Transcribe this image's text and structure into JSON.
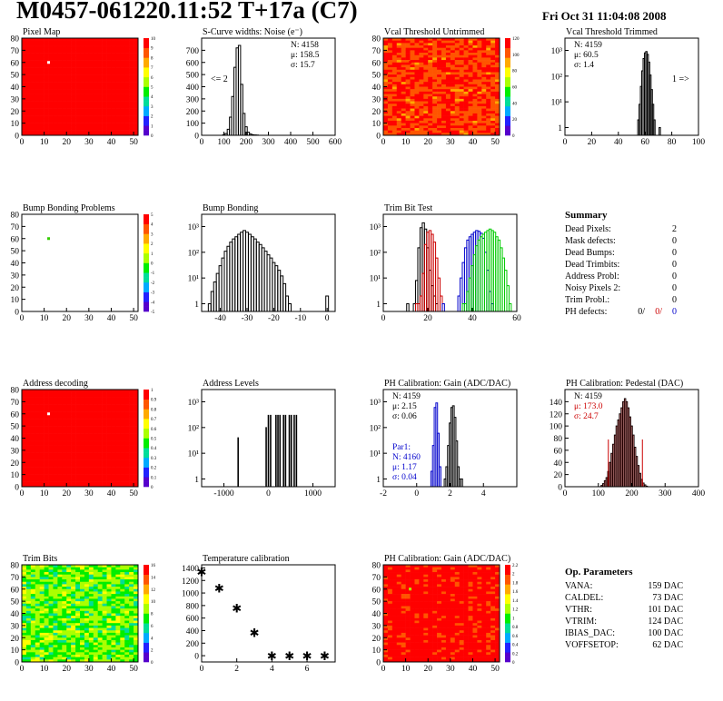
{
  "header": {
    "title": "M0457-061220.11:52 T+17a (C7)",
    "date": "Fri Oct 31 11:04:08 2008"
  },
  "colors": {
    "background": "#ffffff",
    "frame": "#000000",
    "map_fill": "#ff0000",
    "trim_series": [
      "#000000",
      "#cc0000",
      "#0000cc",
      "#00cc00"
    ],
    "palette": [
      "#5500cc",
      "#2222ff",
      "#00aaff",
      "#00dd99",
      "#00ee00",
      "#aaff00",
      "#ffff00",
      "#ffaa00",
      "#ff5500",
      "#ff0000"
    ]
  },
  "chart_data": [
    {
      "id": "pixel_map",
      "type": "heatmap",
      "title": "Pixel Map",
      "xlim": [
        0,
        52
      ],
      "ylim": [
        0,
        80
      ],
      "xticks": [
        0,
        10,
        20,
        30,
        40,
        50
      ],
      "yticks": [
        0,
        10,
        20,
        30,
        40,
        50,
        60,
        70,
        80
      ],
      "fill_level": 10,
      "spots": [
        {
          "x": 12,
          "y": 60,
          "value": 0
        }
      ],
      "scale": [
        "0",
        "1",
        "2",
        "3",
        "4",
        "5",
        "6",
        "7",
        "8",
        "9",
        "10"
      ]
    },
    {
      "id": "scurve_noise",
      "type": "bar",
      "title": "S-Curve widths: Noise (e⁻)",
      "xlim": [
        0,
        600
      ],
      "ylim": [
        0,
        800
      ],
      "xticks": [
        0,
        100,
        200,
        300,
        400,
        500,
        600
      ],
      "yticks": [
        0,
        100,
        200,
        300,
        400,
        500,
        600,
        700
      ],
      "bin_width": 10,
      "x": [
        100,
        110,
        120,
        130,
        140,
        150,
        160,
        170,
        180,
        190,
        200,
        210,
        220,
        230,
        240,
        250
      ],
      "values": [
        5,
        15,
        50,
        150,
        320,
        560,
        720,
        740,
        420,
        180,
        70,
        25,
        10,
        5,
        3,
        2
      ],
      "stats": {
        "n": "N: 4158",
        "mean": "μ: 158.5",
        "sigma": "σ: 15.7"
      },
      "annotation": "<= 2"
    },
    {
      "id": "vcal_untrimmed",
      "type": "heatmap",
      "title": "Vcal Threshold Untrimmed",
      "xlim": [
        0,
        52
      ],
      "ylim": [
        0,
        80
      ],
      "xticks": [
        0,
        10,
        20,
        30,
        40,
        50
      ],
      "yticks": [
        0,
        10,
        20,
        30,
        40,
        50,
        60,
        70,
        80
      ],
      "fill_level": 8.5,
      "spots": [
        {
          "x": 12,
          "y": 60,
          "value": 9.5
        }
      ],
      "scale": [
        "0",
        "20",
        "40",
        "60",
        "80",
        "100",
        "120"
      ]
    },
    {
      "id": "vcal_trimmed",
      "type": "bar",
      "title": "Vcal Threshold Trimmed",
      "xlim": [
        0,
        100
      ],
      "ylim": [
        0.5,
        3000
      ],
      "log_y": true,
      "xticks": [
        0,
        20,
        40,
        60,
        80,
        100
      ],
      "yticks": [
        1,
        10,
        100,
        1000
      ],
      "bin_width": 1,
      "x": [
        55,
        56,
        57,
        58,
        59,
        60,
        61,
        62,
        63,
        64,
        65,
        66,
        67,
        71
      ],
      "values": [
        2,
        8,
        40,
        160,
        480,
        800,
        900,
        700,
        350,
        110,
        30,
        8,
        2,
        1
      ],
      "stats": {
        "n": "N: 4159",
        "mean": "μ: 60.5",
        "sigma": "σ: 1.4"
      },
      "annotation": "1 =>"
    },
    {
      "id": "bump_map",
      "type": "heatmap",
      "title": "Bump Bonding Problems",
      "xlim": [
        0,
        52
      ],
      "ylim": [
        0,
        80
      ],
      "xticks": [
        0,
        10,
        20,
        30,
        40,
        50
      ],
      "yticks": [
        0,
        10,
        20,
        30,
        40,
        50,
        60,
        70,
        80
      ],
      "fill_level": null,
      "spots": [
        {
          "x": 12,
          "y": 60,
          "value": 4.5
        }
      ],
      "scale": [
        "-5",
        "-4",
        "-3",
        "-2",
        "-1",
        "0",
        "1",
        "2",
        "3",
        "4",
        "5"
      ]
    },
    {
      "id": "bump_bonding",
      "type": "bar",
      "title": "Bump Bonding",
      "xlim": [
        -47,
        3
      ],
      "ylim": [
        0.5,
        3000
      ],
      "log_y": true,
      "xticks": [
        -40,
        -30,
        -20,
        -10,
        0
      ],
      "yticks": [
        1,
        10,
        100,
        1000
      ],
      "bin_width": 1,
      "x": [
        -44,
        -43,
        -42,
        -41,
        -40,
        -39,
        -38,
        -37,
        -36,
        -35,
        -34,
        -33,
        -32,
        -31,
        -30,
        -29,
        -28,
        -27,
        -26,
        -25,
        -24,
        -23,
        -22,
        -21,
        -20,
        -19,
        -18,
        -17,
        -16,
        -15,
        -14,
        0
      ],
      "values": [
        1,
        3,
        7,
        15,
        30,
        60,
        110,
        170,
        250,
        330,
        400,
        500,
        600,
        700,
        600,
        500,
        400,
        330,
        250,
        200,
        150,
        110,
        80,
        60,
        40,
        30,
        20,
        12,
        6,
        2,
        1,
        2
      ]
    },
    {
      "id": "trim_bit_test",
      "type": "bar",
      "title": "Trim Bit Test",
      "xlim": [
        0,
        60
      ],
      "ylim": [
        0.5,
        3000
      ],
      "log_y": true,
      "xticks": [
        0,
        20,
        40,
        60
      ],
      "yticks": [
        1,
        10,
        100,
        1000
      ],
      "bin_width": 1,
      "series": [
        {
          "x": [
            11,
            14,
            15,
            16,
            17,
            18,
            19,
            20,
            21,
            22,
            23,
            24
          ],
          "values": [
            1,
            1,
            8,
            150,
            900,
            1400,
            800,
            150,
            20,
            5,
            2,
            1
          ]
        },
        {
          "x": [
            15,
            16,
            17,
            18,
            19,
            20,
            21,
            22,
            23,
            24,
            25,
            26
          ],
          "values": [
            1,
            1,
            2,
            15,
            200,
            600,
            700,
            500,
            250,
            60,
            10,
            2
          ]
        },
        {
          "x": [
            27,
            34,
            35,
            36,
            37,
            38,
            39,
            40,
            41,
            42,
            43,
            44,
            45,
            46,
            47,
            48,
            49
          ],
          "values": [
            1,
            2,
            10,
            40,
            150,
            300,
            400,
            500,
            600,
            700,
            650,
            550,
            350,
            100,
            20,
            3,
            1
          ]
        },
        {
          "x": [
            36,
            37,
            38,
            39,
            40,
            41,
            42,
            43,
            44,
            45,
            46,
            47,
            48,
            49,
            50,
            51,
            52,
            53,
            54,
            55,
            56,
            57
          ],
          "values": [
            1,
            1,
            3,
            10,
            30,
            80,
            180,
            300,
            400,
            500,
            600,
            700,
            800,
            700,
            600,
            400,
            300,
            150,
            60,
            20,
            5,
            1
          ]
        }
      ]
    },
    {
      "id": "address_decoding",
      "type": "heatmap",
      "title": "Address decoding",
      "xlim": [
        0,
        52
      ],
      "ylim": [
        0,
        80
      ],
      "xticks": [
        0,
        10,
        20,
        30,
        40,
        50
      ],
      "yticks": [
        0,
        10,
        20,
        30,
        40,
        50,
        60,
        70,
        80
      ],
      "fill_level": 10,
      "spots": [
        {
          "x": 12,
          "y": 60,
          "value": 0
        }
      ],
      "scale": [
        "0",
        "0.1",
        "0.2",
        "0.3",
        "0.4",
        "0.5",
        "0.6",
        "0.7",
        "0.8",
        "0.9",
        "1"
      ]
    },
    {
      "id": "address_levels",
      "type": "bar",
      "title": "Address Levels",
      "xlim": [
        -1500,
        1500
      ],
      "ylim": [
        0.5,
        3000
      ],
      "log_y": true,
      "xticks": [
        -1000,
        0,
        1000
      ],
      "yticks": [
        1,
        10,
        100,
        1000
      ],
      "bin_width": 12,
      "x": [
        -680,
        -50,
        0,
        50,
        170,
        215,
        260,
        340,
        385,
        470,
        515,
        580,
        630
      ],
      "values": [
        40,
        100,
        300,
        300,
        300,
        300,
        300,
        300,
        300,
        300,
        300,
        300,
        300
      ]
    },
    {
      "id": "ph_gain",
      "type": "bar",
      "title": "PH Calibration: Gain (ADC/DAC)",
      "xlim": [
        -2,
        6
      ],
      "ylim": [
        0.5,
        3000
      ],
      "log_y": true,
      "xticks": [
        -2,
        0,
        2,
        4
      ],
      "yticks": [
        1,
        10,
        100,
        1000
      ],
      "bin_width": 0.1,
      "series": [
        {
          "x": [
            1.7,
            1.8,
            1.9,
            2.0,
            2.1,
            2.2,
            2.3,
            2.4,
            2.5,
            2.6,
            2.7
          ],
          "values": [
            1,
            3,
            20,
            150,
            600,
            700,
            250,
            30,
            3,
            1,
            1
          ]
        },
        {
          "x": [
            0.9,
            1.0,
            1.1,
            1.2,
            1.3,
            1.4
          ],
          "values": [
            2,
            20,
            600,
            900,
            60,
            3
          ]
        }
      ],
      "stats": {
        "n": "N: 4159",
        "mean": "μ: 2.15",
        "sigma": "σ: 0.06"
      },
      "stats2": {
        "name": "Par1:",
        "n": "N: 4160",
        "mean": "μ: 1.17",
        "sigma": "σ: 0.04"
      }
    },
    {
      "id": "ph_pedestal",
      "type": "bar",
      "title": "PH Calibration: Pedestal (DAC)",
      "xlim": [
        0,
        400
      ],
      "ylim": [
        0,
        160
      ],
      "xticks": [
        0,
        100,
        200,
        300,
        400
      ],
      "yticks": [
        0,
        20,
        40,
        60,
        80,
        100,
        120,
        140
      ],
      "bin_width": 4,
      "x": [
        110,
        115,
        120,
        125,
        130,
        135,
        140,
        145,
        150,
        155,
        160,
        165,
        170,
        175,
        180,
        185,
        190,
        195,
        200,
        205,
        210,
        215,
        220,
        225,
        230,
        235,
        240,
        245
      ],
      "values": [
        2,
        5,
        10,
        15,
        25,
        40,
        55,
        70,
        85,
        100,
        110,
        120,
        130,
        140,
        145,
        140,
        130,
        115,
        100,
        85,
        65,
        50,
        35,
        22,
        12,
        6,
        3,
        1
      ],
      "stats": {
        "n": "N: 4159",
        "mean": "μ: 173.0",
        "sigma": "σ: 24.7"
      }
    },
    {
      "id": "trim_bits",
      "type": "heatmap",
      "title": "Trim Bits",
      "xlim": [
        0,
        52
      ],
      "ylim": [
        0,
        80
      ],
      "xticks": [
        0,
        10,
        20,
        30,
        40,
        50
      ],
      "yticks": [
        0,
        10,
        20,
        30,
        40,
        50,
        60,
        70,
        80
      ],
      "fill_level": 4.5,
      "spots": [],
      "scale": [
        "0",
        "2",
        "4",
        "6",
        "8",
        "10",
        "12",
        "14",
        "16"
      ]
    },
    {
      "id": "temperature",
      "type": "scatter",
      "title": "Temperature calibration",
      "xlim": [
        0,
        7.6
      ],
      "ylim": [
        -100,
        1450
      ],
      "xticks": [
        0,
        2,
        4,
        6
      ],
      "yticks": [
        0,
        200,
        400,
        600,
        800,
        1000,
        1200,
        1400
      ],
      "x": [
        0,
        1,
        2,
        3,
        4,
        5,
        6,
        7
      ],
      "values": [
        1340,
        1080,
        760,
        370,
        0,
        0,
        0,
        0
      ]
    },
    {
      "id": "ph_gain_map",
      "type": "heatmap",
      "title": "PH Calibration: Gain (ADC/DAC)",
      "xlim": [
        0,
        52
      ],
      "ylim": [
        0,
        80
      ],
      "xticks": [
        0,
        10,
        20,
        30,
        40,
        50
      ],
      "yticks": [
        0,
        10,
        20,
        30,
        40,
        50,
        60,
        70,
        80
      ],
      "fill_level": 8.8,
      "spots": [
        {
          "x": 12,
          "y": 60,
          "value": 5
        }
      ],
      "scale": [
        "0",
        "0.2",
        "0.4",
        "0.6",
        "0.8",
        "1",
        "1.2",
        "1.4",
        "1.6",
        "1.8",
        "2",
        "2.2"
      ]
    }
  ],
  "summary": {
    "title": "Summary",
    "rows": [
      {
        "label": "Dead Pixels:",
        "value": "2"
      },
      {
        "label": "Mask defects:",
        "value": "0"
      },
      {
        "label": "Dead Bumps:",
        "value": "0"
      },
      {
        "label": "Dead Trimbits:",
        "value": "0"
      },
      {
        "label": "Address Probl:",
        "value": "0"
      },
      {
        "label": "Noisy Pixels 2:",
        "value": "0"
      },
      {
        "label": "Trim Probl.:",
        "value": "0"
      }
    ],
    "ph": {
      "label": "PH defects:",
      "v1": "0/",
      "v2": "0/",
      "v3": "0"
    }
  },
  "op_parameters": {
    "title": "Op. Parameters",
    "rows": [
      {
        "label": "VANA:",
        "value": "159 DAC"
      },
      {
        "label": "CALDEL:",
        "value": "73 DAC"
      },
      {
        "label": "VTHR:",
        "value": "101 DAC"
      },
      {
        "label": "VTRIM:",
        "value": "124 DAC"
      },
      {
        "label": "IBIAS_DAC:",
        "value": "100 DAC"
      },
      {
        "label": "VOFFSETOP:",
        "value": "62 DAC"
      }
    ]
  }
}
